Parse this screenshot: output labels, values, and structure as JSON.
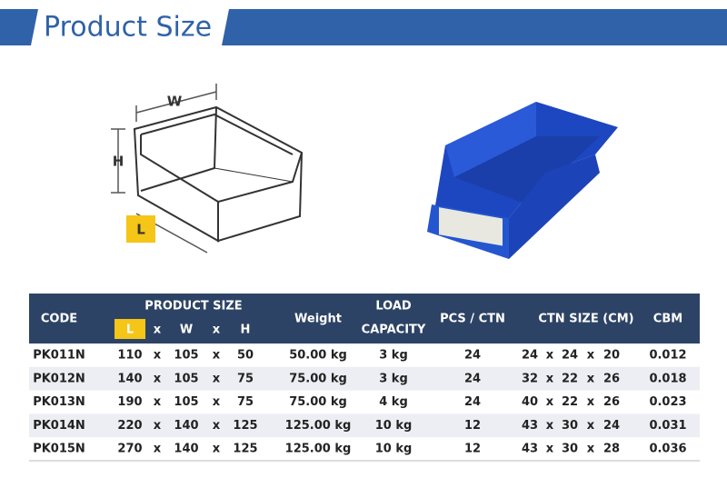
{
  "header": {
    "title": "Product Size"
  },
  "diagram": {
    "w": "W",
    "h": "H",
    "l": "L"
  },
  "table": {
    "separator": "x",
    "headers": {
      "code": "CODE",
      "product_size": "PRODUCT SIZE",
      "l": "L",
      "w": "W",
      "h": "H",
      "weight": "Weight",
      "load_1": "LOAD",
      "load_2": "CAPACITY",
      "pcs": "PCS / CTN",
      "ctn": "CTN SIZE (CM)",
      "cbm": "CBM"
    },
    "rows": [
      [
        "PK011N",
        "110",
        "105",
        "50",
        "50.00 kg",
        "3 kg",
        "24",
        "24",
        "24",
        "20",
        "0.012"
      ],
      [
        "PK012N",
        "140",
        "105",
        "75",
        "75.00 kg",
        "3 kg",
        "24",
        "32",
        "22",
        "26",
        "0.018"
      ],
      [
        "PK013N",
        "190",
        "105",
        "75",
        "75.00 kg",
        "4 kg",
        "24",
        "40",
        "22",
        "26",
        "0.023"
      ],
      [
        "PK014N",
        "220",
        "140",
        "125",
        "125.00 kg",
        "10 kg",
        "12",
        "43",
        "30",
        "24",
        "0.031"
      ],
      [
        "PK015N",
        "270",
        "140",
        "125",
        "125.00 kg",
        "10 kg",
        "12",
        "43",
        "30",
        "28",
        "0.036"
      ]
    ]
  }
}
